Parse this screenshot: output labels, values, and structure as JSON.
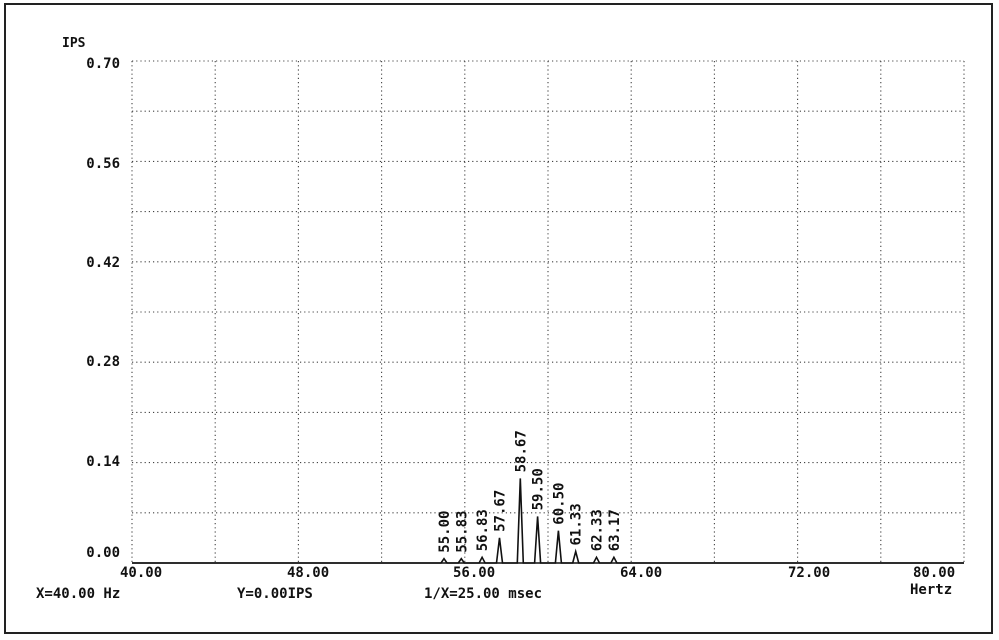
{
  "chart_data": {
    "type": "line",
    "ylabel": "IPS",
    "xlabel": "Hertz",
    "xlim": [
      40,
      80
    ],
    "ylim": [
      0,
      0.7
    ],
    "x_ticks": [
      "40.00",
      "48.00",
      "56.00",
      "64.00",
      "72.00",
      "80.00"
    ],
    "y_ticks": [
      "0.00",
      "0.14",
      "0.28",
      "0.42",
      "0.56",
      "0.70"
    ],
    "grid": true,
    "peaks": [
      {
        "x": 55.0,
        "y": 0.006,
        "label": "55.00"
      },
      {
        "x": 55.83,
        "y": 0.006,
        "label": "55.83"
      },
      {
        "x": 56.83,
        "y": 0.008,
        "label": "56.83"
      },
      {
        "x": 57.67,
        "y": 0.035,
        "label": "57.67"
      },
      {
        "x": 58.67,
        "y": 0.118,
        "label": "58.67"
      },
      {
        "x": 59.5,
        "y": 0.065,
        "label": "59.50"
      },
      {
        "x": 60.5,
        "y": 0.045,
        "label": "60.50"
      },
      {
        "x": 61.33,
        "y": 0.016,
        "label": "61.33"
      },
      {
        "x": 62.33,
        "y": 0.008,
        "label": "62.33"
      },
      {
        "x": 63.17,
        "y": 0.008,
        "label": "63.17"
      }
    ]
  },
  "status": {
    "x_readout": "X=40.00 Hz",
    "y_readout": "Y=0.00IPS",
    "period_readout": "1/X=25.00 msec"
  }
}
